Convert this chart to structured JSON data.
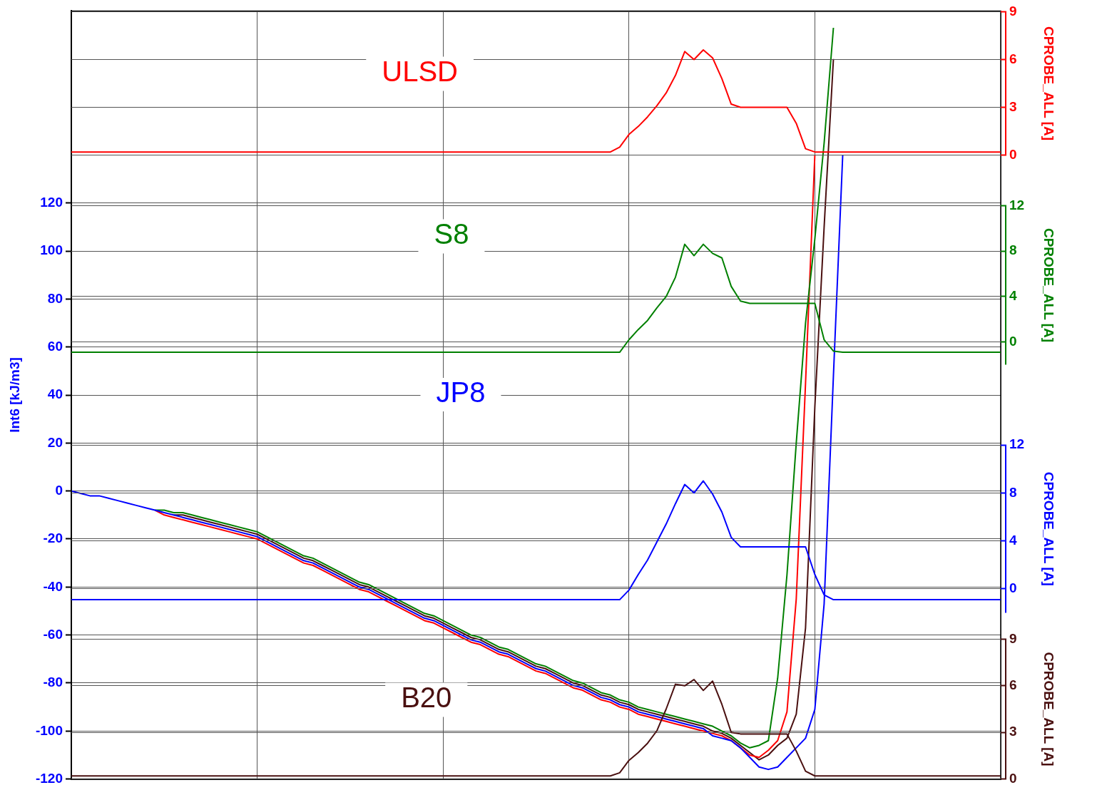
{
  "chart_data": [
    {
      "type": "line",
      "categories": [
        null,
        null,
        null,
        null,
        null,
        null,
        null,
        null,
        null,
        null,
        null,
        null,
        null,
        null,
        null,
        null,
        null,
        null,
        null,
        null,
        null,
        null,
        null,
        null,
        null,
        null,
        null,
        null,
        null,
        null,
        null,
        null,
        null,
        null,
        null,
        null,
        null,
        null,
        null,
        null,
        null,
        null,
        null,
        null,
        null,
        null,
        null,
        null,
        null,
        null,
        null,
        null,
        null,
        null,
        null,
        null,
        null,
        null,
        null,
        null,
        null,
        null,
        null,
        null,
        null,
        null,
        null,
        null,
        null,
        null,
        null,
        null,
        null,
        null,
        null,
        null,
        null,
        null,
        null,
        null,
        null,
        null,
        null,
        null,
        null,
        null,
        null,
        null,
        null,
        null,
        null,
        null,
        null,
        null,
        null,
        null,
        null,
        null,
        null,
        null,
        null
      ],
      "ylabel": "Int6 [kJ/m3]",
      "ylim": [
        -120,
        200
      ],
      "yticks": [
        -120,
        -100,
        -80,
        -60,
        -40,
        -20,
        0,
        20,
        40,
        60,
        80,
        100,
        120
      ],
      "grid": true,
      "series": [
        {
          "color": "#0000ff",
          "values": [
            0,
            -1,
            -2,
            -2,
            -3,
            -4,
            -5,
            -6,
            -7,
            -8,
            -9,
            -10,
            -11,
            -12,
            -13,
            -14,
            -15,
            -16,
            -17,
            -18,
            -19,
            -21,
            -23,
            -25,
            -27,
            -29,
            -30,
            -32,
            -34,
            -36,
            -38,
            -40,
            -41,
            -43,
            -45,
            -47,
            -49,
            -51,
            -53,
            -54,
            -56,
            -58,
            -60,
            -62,
            -63,
            -65,
            -67,
            -68,
            -70,
            -72,
            -74,
            -75,
            -77,
            -79,
            -81,
            -82,
            -84,
            -86,
            -87,
            -89,
            -90,
            -92,
            -93,
            -94,
            -95,
            -96,
            -97,
            -98,
            -99,
            -102,
            -103,
            -104,
            -107,
            -111,
            -115,
            -116,
            -115,
            -111,
            -107,
            -103,
            -91,
            -47,
            48,
            140,
            null,
            null,
            null,
            null,
            null,
            null,
            null,
            null,
            null,
            null,
            null,
            null,
            null,
            null,
            null,
            null,
            null
          ]
        },
        {
          "color": "#008000",
          "values": [
            null,
            null,
            null,
            null,
            null,
            null,
            null,
            null,
            null,
            -8,
            -8,
            -9,
            -9,
            -10,
            -11,
            -12,
            -13,
            -14,
            -15,
            -16,
            -17,
            -19,
            -21,
            -23,
            -25,
            -27,
            -28,
            -30,
            -32,
            -34,
            -36,
            -38,
            -39,
            -41,
            -43,
            -45,
            -47,
            -49,
            -51,
            -52,
            -54,
            -56,
            -58,
            -60,
            -61,
            -63,
            -65,
            -66,
            -68,
            -70,
            -72,
            -73,
            -75,
            -77,
            -79,
            -80,
            -82,
            -84,
            -85,
            -87,
            -88,
            -90,
            -91,
            -92,
            -93,
            -94,
            -95,
            -96,
            -97,
            -98,
            -100,
            -102,
            -105,
            -107,
            -106,
            -104,
            -78,
            -35,
            20,
            70,
            105,
            145,
            193,
            null,
            null,
            null,
            null,
            null,
            null,
            null,
            null,
            null,
            null,
            null,
            null,
            null,
            null,
            null,
            null,
            null,
            null
          ]
        },
        {
          "color": "#ff0000",
          "values": [
            null,
            null,
            null,
            null,
            null,
            null,
            null,
            null,
            null,
            -8,
            -10,
            -11,
            -12,
            -13,
            -14,
            -15,
            -16,
            -17,
            -18,
            -19,
            -20,
            -22,
            -24,
            -26,
            -28,
            -30,
            -31,
            -33,
            -35,
            -37,
            -39,
            -41,
            -42,
            -44,
            -46,
            -48,
            -50,
            -52,
            -54,
            -55,
            -57,
            -59,
            -61,
            -63,
            -64,
            -66,
            -68,
            -69,
            -71,
            -73,
            -75,
            -76,
            -78,
            -80,
            -82,
            -83,
            -85,
            -87,
            -88,
            -90,
            -91,
            -93,
            -94,
            -95,
            -96,
            -97,
            -98,
            -99,
            -100,
            -101,
            -102,
            -104,
            -107,
            -110,
            -111,
            -108,
            -104,
            -92,
            -45,
            45,
            140,
            null,
            null,
            null,
            null,
            null,
            null,
            null,
            null,
            null,
            null,
            null,
            null,
            null,
            null,
            null,
            null,
            null,
            null,
            null,
            null
          ]
        },
        {
          "color": "#4a1010",
          "values": [
            null,
            null,
            null,
            null,
            null,
            null,
            null,
            null,
            null,
            null,
            null,
            -10,
            -10,
            -11,
            -12,
            -13,
            -14,
            -15,
            -16,
            -17,
            -18,
            -20,
            -22,
            -24,
            -26,
            -28,
            -29,
            -31,
            -33,
            -35,
            -37,
            -39,
            -40,
            -42,
            -44,
            -46,
            -48,
            -50,
            -52,
            -53,
            -55,
            -57,
            -59,
            -61,
            -62,
            -64,
            -66,
            -67,
            -69,
            -71,
            -73,
            -74,
            -76,
            -78,
            -80,
            -81,
            -83,
            -85,
            -86,
            -88,
            -89,
            -91,
            -92,
            -93,
            -94,
            -95,
            -96,
            -97,
            -98,
            -100,
            -101,
            -103,
            -106,
            -109,
            -112,
            -110,
            -106,
            -103,
            -93,
            -57,
            35,
            110,
            180,
            null,
            null,
            null,
            null,
            null,
            null,
            null,
            null,
            null,
            null,
            null,
            null,
            null,
            null,
            null,
            null,
            null,
            null
          ]
        }
      ]
    },
    {
      "type": "line",
      "categories": [
        null,
        null,
        null,
        null,
        null,
        null,
        null,
        null,
        null,
        null,
        null,
        null,
        null,
        null,
        null,
        null,
        null,
        null,
        null,
        null,
        null,
        null,
        null,
        null,
        null,
        null,
        null,
        null,
        null,
        null,
        null,
        null,
        null,
        null,
        null,
        null,
        null,
        null,
        null,
        null,
        null,
        null,
        null,
        null,
        null,
        null,
        null,
        null,
        null,
        null,
        null,
        null,
        null,
        null,
        null,
        null,
        null,
        null,
        null,
        null,
        null,
        null,
        null,
        null,
        null,
        null,
        null,
        null,
        null,
        null,
        null,
        null,
        null,
        null,
        null,
        null,
        null,
        null,
        null,
        null,
        null,
        null,
        null,
        null,
        null,
        null,
        null,
        null,
        null,
        null,
        null,
        null,
        null,
        null,
        null,
        null,
        null,
        null,
        null,
        null,
        null
      ],
      "ylabel": "CPROBE_ALL [A]",
      "ylim": [
        0,
        9
      ],
      "yticks": [
        0,
        3,
        6,
        9
      ],
      "grid": "y",
      "series": [
        {
          "name": "ULSD",
          "color": "#ff0000",
          "values": [
            0.2,
            0.2,
            0.2,
            0.2,
            0.2,
            0.2,
            0.2,
            0.2,
            0.2,
            0.2,
            0.2,
            0.2,
            0.2,
            0.2,
            0.2,
            0.2,
            0.2,
            0.2,
            0.2,
            0.2,
            0.2,
            0.2,
            0.2,
            0.2,
            0.2,
            0.2,
            0.2,
            0.2,
            0.2,
            0.2,
            0.2,
            0.2,
            0.2,
            0.2,
            0.2,
            0.2,
            0.2,
            0.2,
            0.2,
            0.2,
            0.2,
            0.2,
            0.2,
            0.2,
            0.2,
            0.2,
            0.2,
            0.2,
            0.2,
            0.2,
            0.2,
            0.2,
            0.2,
            0.2,
            0.2,
            0.2,
            0.2,
            0.2,
            0.2,
            0.5,
            1.3,
            1.8,
            2.4,
            3.1,
            3.9,
            5.0,
            6.5,
            6.0,
            6.6,
            6.1,
            4.8,
            3.2,
            3.0,
            3.0,
            3.0,
            3.0,
            3.0,
            3.0,
            2.0,
            0.4,
            0.2,
            0.2,
            0.2,
            0.2,
            0.2,
            0.2,
            0.2,
            0.2,
            0.2,
            0.2,
            0.2,
            0.2,
            0.2,
            0.2,
            0.2,
            0.2,
            0.2,
            0.2,
            0.2,
            0.2,
            0.2
          ]
        }
      ]
    },
    {
      "type": "line",
      "categories": [
        null,
        null,
        null,
        null,
        null,
        null,
        null,
        null,
        null,
        null,
        null,
        null,
        null,
        null,
        null,
        null,
        null,
        null,
        null,
        null,
        null,
        null,
        null,
        null,
        null,
        null,
        null,
        null,
        null,
        null,
        null,
        null,
        null,
        null,
        null,
        null,
        null,
        null,
        null,
        null,
        null,
        null,
        null,
        null,
        null,
        null,
        null,
        null,
        null,
        null,
        null,
        null,
        null,
        null,
        null,
        null,
        null,
        null,
        null,
        null,
        null,
        null,
        null,
        null,
        null,
        null,
        null,
        null,
        null,
        null,
        null,
        null,
        null,
        null,
        null,
        null,
        null,
        null,
        null,
        null,
        null,
        null,
        null,
        null,
        null,
        null,
        null,
        null,
        null,
        null,
        null,
        null,
        null,
        null,
        null,
        null,
        null,
        null,
        null,
        null,
        null
      ],
      "ylabel": "CPROBE_ALL [A]",
      "ylim": [
        -2,
        12
      ],
      "yticks": [
        0,
        4,
        8,
        12
      ],
      "grid": "y",
      "series": [
        {
          "name": "S8",
          "color": "#008000",
          "values": [
            -0.9,
            -0.9,
            -0.9,
            -0.9,
            -0.9,
            -0.9,
            -0.9,
            -0.9,
            -0.9,
            -0.9,
            -0.9,
            -0.9,
            -0.9,
            -0.9,
            -0.9,
            -0.9,
            -0.9,
            -0.9,
            -0.9,
            -0.9,
            -0.9,
            -0.9,
            -0.9,
            -0.9,
            -0.9,
            -0.9,
            -0.9,
            -0.9,
            -0.9,
            -0.9,
            -0.9,
            -0.9,
            -0.9,
            -0.9,
            -0.9,
            -0.9,
            -0.9,
            -0.9,
            -0.9,
            -0.9,
            -0.9,
            -0.9,
            -0.9,
            -0.9,
            -0.9,
            -0.9,
            -0.9,
            -0.9,
            -0.9,
            -0.9,
            -0.9,
            -0.9,
            -0.9,
            -0.9,
            -0.9,
            -0.9,
            -0.9,
            -0.9,
            -0.9,
            -0.9,
            0.2,
            1.1,
            1.9,
            3.0,
            4.0,
            5.7,
            8.6,
            7.6,
            8.6,
            7.8,
            7.4,
            4.9,
            3.6,
            3.4,
            3.4,
            3.4,
            3.4,
            3.4,
            3.4,
            3.4,
            3.4,
            0.2,
            -0.8,
            -0.9,
            -0.9,
            -0.9,
            -0.9,
            -0.9,
            -0.9,
            -0.9,
            -0.9,
            -0.9,
            -0.9,
            -0.9,
            -0.9,
            -0.9,
            -0.9,
            -0.9,
            -0.9,
            -0.9,
            -0.9
          ]
        }
      ]
    },
    {
      "type": "line",
      "categories": [
        null,
        null,
        null,
        null,
        null,
        null,
        null,
        null,
        null,
        null,
        null,
        null,
        null,
        null,
        null,
        null,
        null,
        null,
        null,
        null,
        null,
        null,
        null,
        null,
        null,
        null,
        null,
        null,
        null,
        null,
        null,
        null,
        null,
        null,
        null,
        null,
        null,
        null,
        null,
        null,
        null,
        null,
        null,
        null,
        null,
        null,
        null,
        null,
        null,
        null,
        null,
        null,
        null,
        null,
        null,
        null,
        null,
        null,
        null,
        null,
        null,
        null,
        null,
        null,
        null,
        null,
        null,
        null,
        null,
        null,
        null,
        null,
        null,
        null,
        null,
        null,
        null,
        null,
        null,
        null,
        null,
        null,
        null,
        null,
        null,
        null,
        null,
        null,
        null,
        null,
        null,
        null,
        null,
        null,
        null,
        null,
        null,
        null,
        null,
        null,
        null
      ],
      "ylabel": "CPROBE_ALL [A]",
      "ylim": [
        -2,
        12
      ],
      "yticks": [
        0,
        4,
        8,
        12
      ],
      "grid": "y",
      "series": [
        {
          "name": "JP8",
          "color": "#0000ff",
          "values": [
            -0.9,
            -0.9,
            -0.9,
            -0.9,
            -0.9,
            -0.9,
            -0.9,
            -0.9,
            -0.9,
            -0.9,
            -0.9,
            -0.9,
            -0.9,
            -0.9,
            -0.9,
            -0.9,
            -0.9,
            -0.9,
            -0.9,
            -0.9,
            -0.9,
            -0.9,
            -0.9,
            -0.9,
            -0.9,
            -0.9,
            -0.9,
            -0.9,
            -0.9,
            -0.9,
            -0.9,
            -0.9,
            -0.9,
            -0.9,
            -0.9,
            -0.9,
            -0.9,
            -0.9,
            -0.9,
            -0.9,
            -0.9,
            -0.9,
            -0.9,
            -0.9,
            -0.9,
            -0.9,
            -0.9,
            -0.9,
            -0.9,
            -0.9,
            -0.9,
            -0.9,
            -0.9,
            -0.9,
            -0.9,
            -0.9,
            -0.9,
            -0.9,
            -0.9,
            -0.9,
            -0.1,
            1.2,
            2.4,
            3.9,
            5.4,
            7.1,
            8.7,
            8.0,
            9.0,
            7.9,
            6.4,
            4.3,
            3.5,
            3.5,
            3.5,
            3.5,
            3.5,
            3.5,
            3.5,
            3.5,
            1.2,
            -0.5,
            -0.9,
            -0.9,
            -0.9,
            -0.9,
            -0.9,
            -0.9,
            -0.9,
            -0.9,
            -0.9,
            -0.9,
            -0.9,
            -0.9,
            -0.9,
            -0.9,
            -0.9,
            -0.9,
            -0.9,
            -0.9,
            -0.9
          ]
        }
      ]
    },
    {
      "type": "line",
      "categories": [
        null,
        null,
        null,
        null,
        null,
        null,
        null,
        null,
        null,
        null,
        null,
        null,
        null,
        null,
        null,
        null,
        null,
        null,
        null,
        null,
        null,
        null,
        null,
        null,
        null,
        null,
        null,
        null,
        null,
        null,
        null,
        null,
        null,
        null,
        null,
        null,
        null,
        null,
        null,
        null,
        null,
        null,
        null,
        null,
        null,
        null,
        null,
        null,
        null,
        null,
        null,
        null,
        null,
        null,
        null,
        null,
        null,
        null,
        null,
        null,
        null,
        null,
        null,
        null,
        null,
        null,
        null,
        null,
        null,
        null,
        null,
        null,
        null,
        null,
        null,
        null,
        null,
        null,
        null,
        null,
        null,
        null,
        null,
        null,
        null,
        null,
        null,
        null,
        null,
        null,
        null,
        null,
        null,
        null,
        null,
        null,
        null,
        null,
        null,
        null,
        null
      ],
      "ylabel": "CPROBE_ALL [A]",
      "ylim": [
        0,
        9
      ],
      "yticks": [
        0,
        3,
        6,
        9
      ],
      "grid": "y",
      "series": [
        {
          "name": "B20",
          "color": "#4a1010",
          "values": [
            0.2,
            0.2,
            0.2,
            0.2,
            0.2,
            0.2,
            0.2,
            0.2,
            0.2,
            0.2,
            0.2,
            0.2,
            0.2,
            0.2,
            0.2,
            0.2,
            0.2,
            0.2,
            0.2,
            0.2,
            0.2,
            0.2,
            0.2,
            0.2,
            0.2,
            0.2,
            0.2,
            0.2,
            0.2,
            0.2,
            0.2,
            0.2,
            0.2,
            0.2,
            0.2,
            0.2,
            0.2,
            0.2,
            0.2,
            0.2,
            0.2,
            0.2,
            0.2,
            0.2,
            0.2,
            0.2,
            0.2,
            0.2,
            0.2,
            0.2,
            0.2,
            0.2,
            0.2,
            0.2,
            0.2,
            0.2,
            0.2,
            0.2,
            0.2,
            0.4,
            1.2,
            1.7,
            2.3,
            3.1,
            4.5,
            6.1,
            6.0,
            6.4,
            5.7,
            6.3,
            4.8,
            3.0,
            2.9,
            2.9,
            2.9,
            2.9,
            2.9,
            2.9,
            1.8,
            0.5,
            0.2,
            0.2,
            0.2,
            0.2,
            0.2,
            0.2,
            0.2,
            0.2,
            0.2,
            0.2,
            0.2,
            0.2,
            0.2,
            0.2,
            0.2,
            0.2,
            0.2,
            0.2,
            0.2,
            0.2,
            0.2
          ]
        }
      ]
    }
  ]
}
